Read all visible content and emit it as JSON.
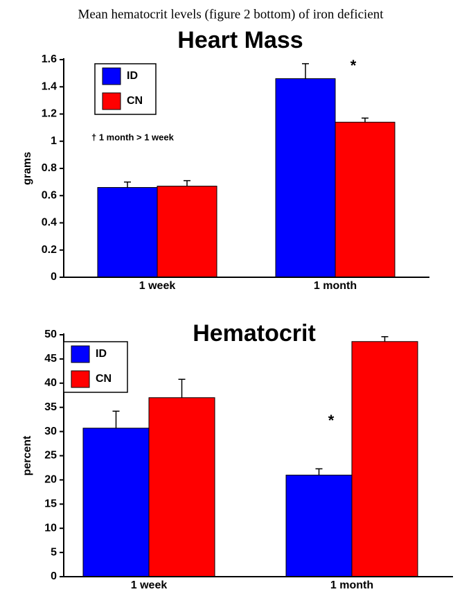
{
  "caption": "Mean hematocrit levels (figure 2 bottom) of iron deficient",
  "chart_data": [
    {
      "type": "bar",
      "title": "Heart Mass",
      "y_label": "grams",
      "categories": [
        "1 week",
        "1 month"
      ],
      "series": [
        {
          "name": "ID",
          "color": "#0000ff",
          "values": [
            0.66,
            1.46
          ],
          "errors": [
            0.04,
            0.11
          ]
        },
        {
          "name": "CN",
          "color": "#ff0000",
          "values": [
            0.67,
            1.14
          ],
          "errors": [
            0.04,
            0.03
          ]
        }
      ],
      "ylim": [
        0,
        1.6
      ],
      "yticks": [
        0,
        0.2,
        0.4,
        0.6,
        0.8,
        1,
        1.2,
        1.4,
        1.6
      ],
      "annotations": [
        "*",
        "† 1 month > 1 week"
      ],
      "legend": "upper left"
    },
    {
      "type": "bar",
      "title": "Hematocrit",
      "y_label": "percent",
      "categories": [
        "1 week",
        "1 month"
      ],
      "series": [
        {
          "name": "ID",
          "color": "#0000ff",
          "values": [
            30.7,
            21.0
          ],
          "errors": [
            3.5,
            1.3
          ]
        },
        {
          "name": "CN",
          "color": "#ff0000",
          "values": [
            37.0,
            48.6
          ],
          "errors": [
            3.8,
            1.0
          ]
        }
      ],
      "ylim": [
        0,
        50
      ],
      "yticks": [
        0,
        5,
        10,
        15,
        20,
        25,
        30,
        35,
        40,
        45,
        50
      ],
      "annotations": [
        "*"
      ],
      "legend": "upper left"
    }
  ]
}
